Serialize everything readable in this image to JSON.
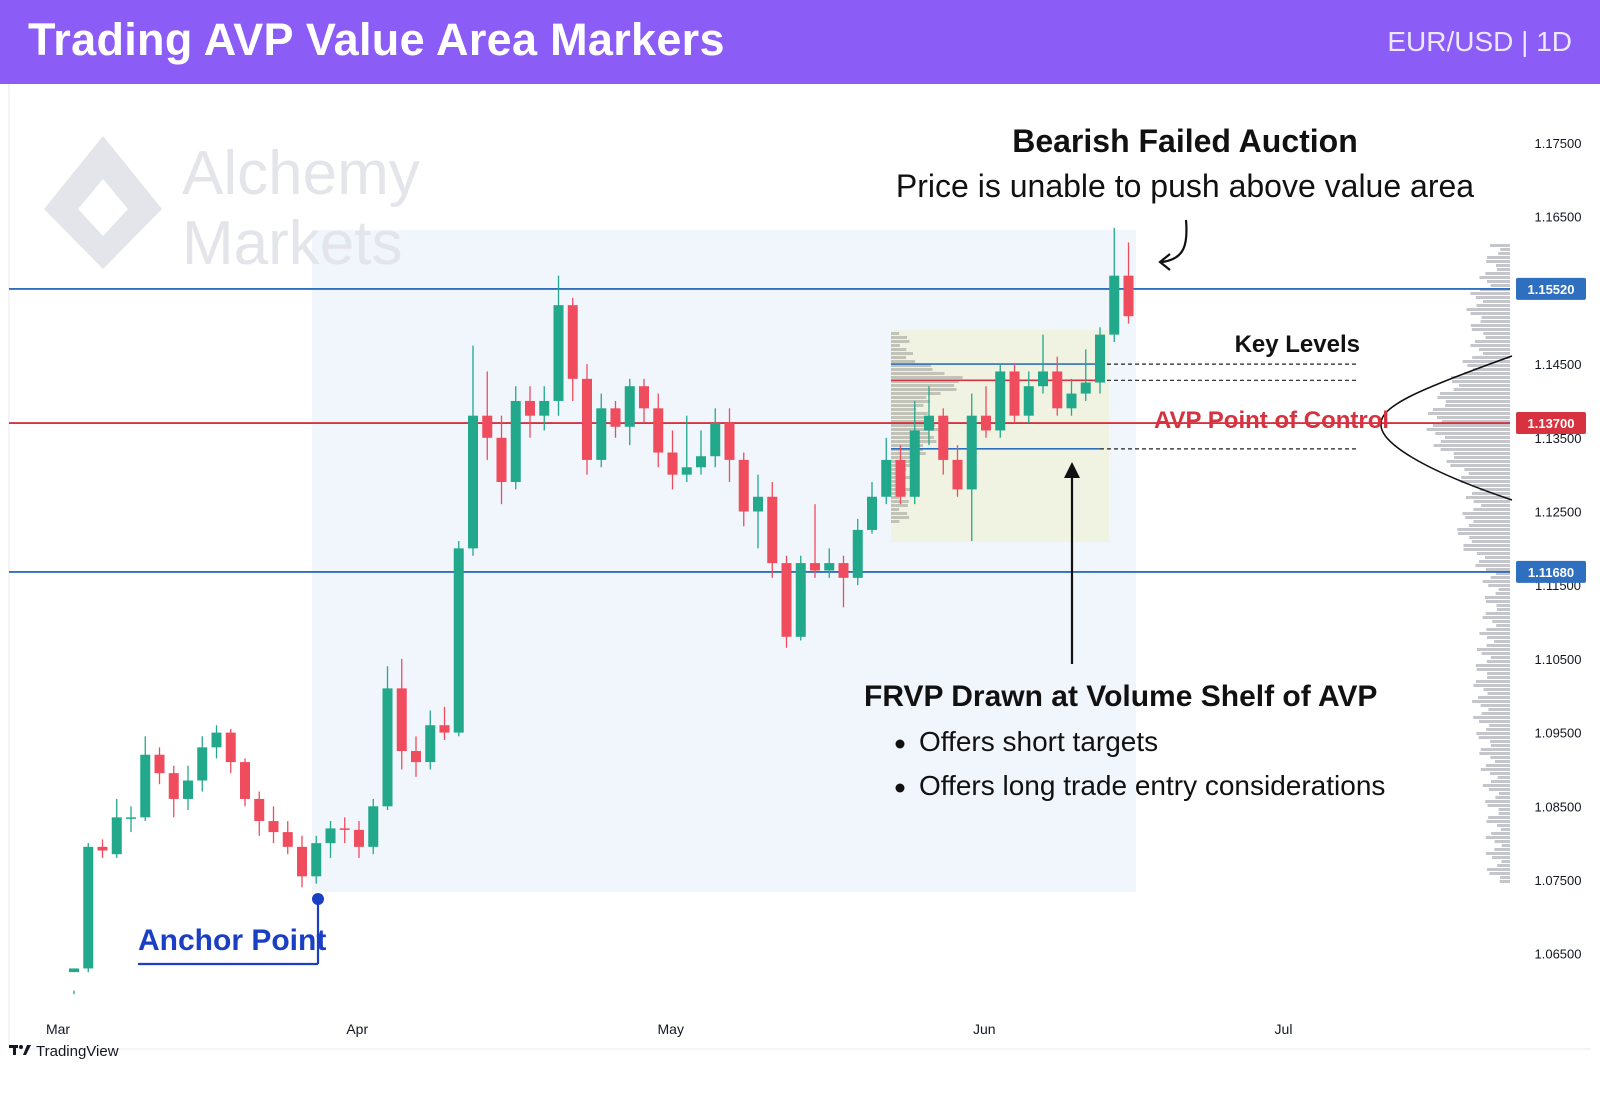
{
  "header": {
    "title": "Trading AVP Value Area Markers",
    "symbol": "EUR/USD | 1D"
  },
  "watermark": {
    "line1": "Alchemy",
    "line2": "Markets"
  },
  "footer": {
    "brand": "TradingView",
    "logo_icon": "tradingview-logo-icon"
  },
  "colors": {
    "bull": "#22a88a",
    "bear": "#ef4c5e",
    "accent": "#8b5cf6",
    "level_blue": "#2f6fc0",
    "poc_red": "#d7323f"
  },
  "chart_data": {
    "type": "candlestick",
    "symbol": "EUR/USD",
    "timeframe": "1D",
    "ylim": [
      1.06,
      1.178
    ],
    "y_ticks": [
      "1.17500",
      "1.16500",
      "1.14500",
      "1.13500",
      "1.12500",
      "1.11500",
      "1.10500",
      "1.09500",
      "1.08500",
      "1.07500",
      "1.06500"
    ],
    "x_labels": [
      {
        "label": "Mar",
        "index": 0
      },
      {
        "label": "Apr",
        "index": 21
      },
      {
        "label": "May",
        "index": 43
      },
      {
        "label": "Jun",
        "index": 65
      },
      {
        "label": "Jul",
        "index": 86
      }
    ],
    "candles": [
      [
        1.0625,
        1.063,
        1.06,
        1.0595
      ],
      [
        1.063,
        1.0795,
        1.08,
        1.0625
      ],
      [
        1.0795,
        1.079,
        1.0805,
        1.078
      ],
      [
        1.0785,
        1.0835,
        1.086,
        1.078
      ],
      [
        1.0835,
        1.0835,
        1.085,
        1.0815
      ],
      [
        1.0835,
        1.092,
        1.0945,
        1.083
      ],
      [
        1.092,
        1.0895,
        1.093,
        1.088
      ],
      [
        1.0895,
        1.086,
        1.0905,
        1.0835
      ],
      [
        1.086,
        1.0885,
        1.0905,
        1.0845
      ],
      [
        1.0885,
        1.093,
        1.0945,
        1.087
      ],
      [
        1.093,
        1.095,
        1.096,
        1.0915
      ],
      [
        1.095,
        1.091,
        1.0955,
        1.0895
      ],
      [
        1.091,
        1.086,
        1.0915,
        1.085
      ],
      [
        1.086,
        1.083,
        1.087,
        1.081
      ],
      [
        1.083,
        1.0815,
        1.085,
        1.08
      ],
      [
        1.0815,
        1.0795,
        1.083,
        1.0785
      ],
      [
        1.0795,
        1.0755,
        1.081,
        1.074
      ],
      [
        1.0755,
        1.08,
        1.081,
        1.0745
      ],
      [
        1.08,
        1.082,
        1.083,
        1.078
      ],
      [
        1.082,
        1.0818,
        1.0835,
        1.08
      ],
      [
        1.0818,
        1.0795,
        1.083,
        1.078
      ],
      [
        1.0795,
        1.085,
        1.086,
        1.0785
      ],
      [
        1.085,
        1.101,
        1.104,
        1.0845
      ],
      [
        1.101,
        1.0925,
        1.105,
        1.09
      ],
      [
        1.0925,
        1.091,
        1.0945,
        1.089
      ],
      [
        1.091,
        1.096,
        1.098,
        1.09
      ],
      [
        1.096,
        1.095,
        1.0985,
        1.094
      ],
      [
        1.095,
        1.12,
        1.121,
        1.0945
      ],
      [
        1.12,
        1.138,
        1.1475,
        1.119
      ],
      [
        1.138,
        1.135,
        1.144,
        1.132
      ],
      [
        1.135,
        1.129,
        1.138,
        1.126
      ],
      [
        1.129,
        1.14,
        1.142,
        1.128
      ],
      [
        1.14,
        1.138,
        1.142,
        1.135
      ],
      [
        1.138,
        1.14,
        1.142,
        1.136
      ],
      [
        1.14,
        1.153,
        1.157,
        1.138
      ],
      [
        1.153,
        1.143,
        1.154,
        1.14
      ],
      [
        1.143,
        1.132,
        1.145,
        1.13
      ],
      [
        1.132,
        1.139,
        1.141,
        1.131
      ],
      [
        1.139,
        1.1365,
        1.14,
        1.135
      ],
      [
        1.1365,
        1.142,
        1.143,
        1.134
      ],
      [
        1.142,
        1.139,
        1.143,
        1.137
      ],
      [
        1.139,
        1.133,
        1.141,
        1.131
      ],
      [
        1.133,
        1.13,
        1.136,
        1.128
      ],
      [
        1.13,
        1.131,
        1.138,
        1.129
      ],
      [
        1.131,
        1.1325,
        1.136,
        1.13
      ],
      [
        1.1325,
        1.137,
        1.139,
        1.131
      ],
      [
        1.137,
        1.132,
        1.139,
        1.129
      ],
      [
        1.132,
        1.125,
        1.133,
        1.123
      ],
      [
        1.125,
        1.127,
        1.13,
        1.12
      ],
      [
        1.127,
        1.118,
        1.129,
        1.116
      ],
      [
        1.118,
        1.108,
        1.119,
        1.1065
      ],
      [
        1.108,
        1.118,
        1.119,
        1.1075
      ],
      [
        1.118,
        1.117,
        1.126,
        1.116
      ],
      [
        1.117,
        1.118,
        1.12,
        1.116
      ],
      [
        1.118,
        1.116,
        1.119,
        1.112
      ],
      [
        1.116,
        1.1225,
        1.124,
        1.115
      ],
      [
        1.1225,
        1.127,
        1.129,
        1.122
      ],
      [
        1.127,
        1.132,
        1.135,
        1.126
      ],
      [
        1.132,
        1.127,
        1.134,
        1.126
      ],
      [
        1.127,
        1.136,
        1.14,
        1.126
      ],
      [
        1.136,
        1.138,
        1.142,
        1.134
      ],
      [
        1.138,
        1.132,
        1.139,
        1.13
      ],
      [
        1.132,
        1.128,
        1.134,
        1.127
      ],
      [
        1.128,
        1.138,
        1.141,
        1.121
      ],
      [
        1.138,
        1.136,
        1.142,
        1.135
      ],
      [
        1.136,
        1.144,
        1.145,
        1.135
      ],
      [
        1.144,
        1.138,
        1.145,
        1.137
      ],
      [
        1.138,
        1.142,
        1.144,
        1.137
      ],
      [
        1.142,
        1.144,
        1.149,
        1.141
      ],
      [
        1.144,
        1.139,
        1.146,
        1.138
      ],
      [
        1.139,
        1.141,
        1.143,
        1.138
      ],
      [
        1.141,
        1.1425,
        1.147,
        1.14
      ],
      [
        1.1425,
        1.149,
        1.15,
        1.141
      ],
      [
        1.149,
        1.157,
        1.1635,
        1.148
      ],
      [
        1.157,
        1.1515,
        1.1615,
        1.1505
      ]
    ],
    "levels": [
      {
        "name": "upper-value-area-level",
        "value": 1.1552,
        "label": "1.15520",
        "color": "#2f6fc0"
      },
      {
        "name": "poc-level",
        "value": 1.137,
        "label": "1.13700",
        "color": "#d7323f"
      },
      {
        "name": "lower-value-area-level",
        "value": 1.1168,
        "label": "1.11680",
        "color": "#2f6fc0"
      }
    ],
    "key_levels": [
      1.145,
      1.1428,
      1.1335
    ],
    "annotations": {
      "failed_auction_title": "Bearish Failed Auction",
      "failed_auction_sub": "Price is unable to push above value area",
      "key_levels": "Key Levels",
      "poc": "AVP Point of Control",
      "anchor": "Anchor Point",
      "frvp_title": "FRVP Drawn at Volume Shelf of AVP",
      "frvp_bullet1": "Offers short targets",
      "frvp_bullet2": "Offers long trade entry considerations"
    }
  }
}
